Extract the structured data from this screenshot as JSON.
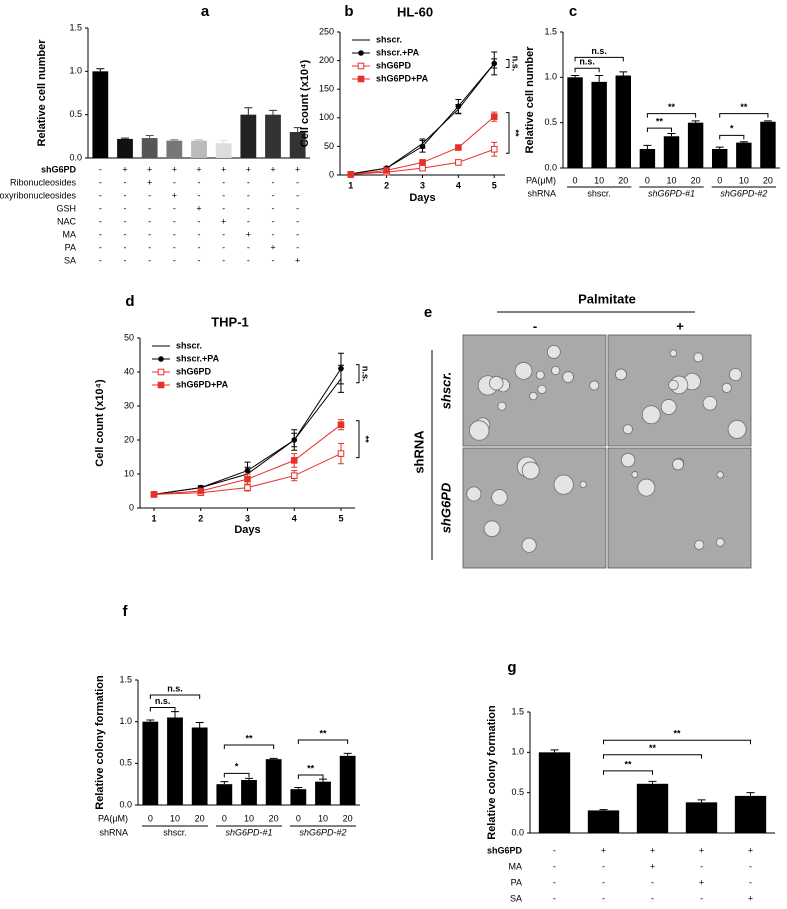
{
  "chart_data": [
    {
      "type": "bar",
      "panel": "a",
      "y_label": "Relative cell number",
      "values": [
        1.0,
        0.22,
        0.23,
        0.2,
        0.2,
        0.17,
        0.5,
        0.5,
        0.3
      ],
      "errors": [
        0.03,
        0.01,
        0.03,
        0.01,
        0.01,
        0.03,
        0.08,
        0.05,
        0.05
      ],
      "colors": [
        "#000000",
        "#111111",
        "#555555",
        "#777777",
        "#bbbbbb",
        "#dddddd",
        "#222222",
        "#333333",
        "#333333"
      ],
      "ylim": [
        0,
        1.5
      ],
      "yticks": [
        {
          "value": 0,
          "label": "0.0"
        },
        {
          "value": 0.5,
          "label": "0.5"
        },
        {
          "value": 1.0,
          "label": "1.0"
        },
        {
          "value": 1.5,
          "label": "1.5"
        }
      ],
      "rows": [
        {
          "label": "shG6PD",
          "cells": [
            "-",
            "+",
            "+",
            "+",
            "+",
            "+",
            "+",
            "+",
            "+"
          ]
        },
        {
          "label": "Ribonucleosides",
          "cells": [
            "-",
            "-",
            "+",
            "-",
            "-",
            "-",
            "-",
            "-",
            "-"
          ]
        },
        {
          "label": "Deoxyribonucleosides",
          "cells": [
            "-",
            "-",
            "-",
            "+",
            "-",
            "-",
            "-",
            "-",
            "-"
          ]
        },
        {
          "label": "GSH",
          "cells": [
            "-",
            "-",
            "-",
            "-",
            "+",
            "-",
            "-",
            "-",
            "-"
          ]
        },
        {
          "label": "NAC",
          "cells": [
            "-",
            "-",
            "-",
            "-",
            "-",
            "+",
            "-",
            "-",
            "-"
          ]
        },
        {
          "label": "MA",
          "cells": [
            "-",
            "-",
            "-",
            "-",
            "-",
            "-",
            "+",
            "-",
            "-"
          ]
        },
        {
          "label": "PA",
          "cells": [
            "-",
            "-",
            "-",
            "-",
            "-",
            "-",
            "-",
            "+",
            "-"
          ]
        },
        {
          "label": "SA",
          "cells": [
            "-",
            "-",
            "-",
            "-",
            "-",
            "-",
            "-",
            "-",
            "+"
          ]
        }
      ]
    },
    {
      "type": "line",
      "panel": "b",
      "title": "HL-60",
      "x_label": "Days",
      "y_label": "Cell count (x10⁴)",
      "x": [
        1,
        2,
        3,
        4,
        5
      ],
      "xlim": [
        0.7,
        5.3
      ],
      "xticks": [
        1,
        2,
        3,
        4,
        5
      ],
      "ylim": [
        0,
        250
      ],
      "yticks": [
        0,
        50,
        100,
        150,
        200,
        250
      ],
      "series": [
        {
          "name": "shscr.",
          "color": "#000000",
          "marker": "none",
          "values": [
            2,
            12,
            55,
            115,
            195
          ],
          "errors": [
            0.5,
            2,
            8,
            8,
            8
          ]
        },
        {
          "name": "shscr.+PA",
          "color": "#000000",
          "marker": "circle",
          "values": [
            2,
            12,
            50,
            120,
            195
          ],
          "errors": [
            1,
            2,
            10,
            12,
            20
          ]
        },
        {
          "name": "shG6PD",
          "color": "#e8302a",
          "marker": "square-open",
          "values": [
            1,
            5,
            12,
            22,
            45
          ],
          "errors": [
            0.5,
            1,
            3,
            3,
            12
          ]
        },
        {
          "name": "shG6PD+PA",
          "color": "#e8302a",
          "marker": "square",
          "values": [
            1,
            8,
            22,
            48,
            102
          ],
          "errors": [
            0.5,
            1,
            3,
            3,
            8
          ]
        }
      ],
      "annotations": [
        "n.s.",
        "**"
      ]
    },
    {
      "type": "bar",
      "panel": "c",
      "y_label": "Relative cell number",
      "values": [
        1.0,
        0.95,
        1.02,
        0.21,
        0.35,
        0.5,
        0.21,
        0.28,
        0.51
      ],
      "errors": [
        0.02,
        0.07,
        0.04,
        0.04,
        0.03,
        0.02,
        0.02,
        0.01,
        0.01
      ],
      "color": "#000000",
      "ylim": [
        0,
        1.5
      ],
      "yticks": [
        {
          "value": 0,
          "label": "0.0"
        },
        {
          "value": 0.5,
          "label": "0.5"
        },
        {
          "value": 1.0,
          "label": "1.0"
        },
        {
          "value": 1.5,
          "label": "1.5"
        }
      ],
      "rows": [
        {
          "label": "PA(μM)",
          "cells": [
            "0",
            "10",
            "20",
            "0",
            "10",
            "20",
            "0",
            "10",
            "20"
          ]
        },
        {
          "label": "shRNA",
          "groups": [
            "shscr.",
            "shG6PD-#1",
            "shG6PD-#2"
          ]
        }
      ],
      "annotations": [
        "n.s.",
        "n.s.",
        "**",
        "**",
        "*",
        "**"
      ]
    },
    {
      "type": "line",
      "panel": "d",
      "title": "THP-1",
      "x_label": "Days",
      "y_label": "Cell count (x10⁴)",
      "x": [
        1,
        2,
        3,
        4,
        5
      ],
      "xlim": [
        0.7,
        5.3
      ],
      "xticks": [
        1,
        2,
        3,
        4,
        5
      ],
      "ylim": [
        0,
        50
      ],
      "yticks": [
        0,
        10,
        20,
        30,
        40,
        50
      ],
      "series": [
        {
          "name": "shscr.",
          "color": "#000000",
          "marker": "none",
          "values": [
            4,
            6,
            10,
            20,
            38
          ],
          "errors": [
            0.3,
            0.5,
            2,
            2,
            4
          ]
        },
        {
          "name": "shscr.+PA",
          "color": "#000000",
          "marker": "circle",
          "values": [
            4,
            6,
            11,
            20,
            41
          ],
          "errors": [
            0.3,
            0.5,
            2.5,
            3,
            4.5
          ]
        },
        {
          "name": "shG6PD",
          "color": "#e8302a",
          "marker": "square-open",
          "values": [
            4,
            4.5,
            6,
            9.5,
            16
          ],
          "errors": [
            0.3,
            0.3,
            1,
            1.5,
            3
          ]
        },
        {
          "name": "shG6PD+PA",
          "color": "#e8302a",
          "marker": "square",
          "values": [
            4,
            5,
            8.5,
            14,
            24.5
          ],
          "errors": [
            0.3,
            0.5,
            1.5,
            2,
            1.5
          ]
        }
      ],
      "annotations": [
        "n.s.",
        "**"
      ]
    },
    {
      "type": "image-grid",
      "panel": "e",
      "title": "Palmitate",
      "columns": [
        "-",
        "+"
      ],
      "rows": [
        "shscr.",
        "shG6PD"
      ],
      "row_axis_label": "shRNA"
    },
    {
      "type": "bar",
      "panel": "f",
      "y_label": "Relative colony formation",
      "values": [
        1.0,
        1.05,
        0.93,
        0.25,
        0.3,
        0.55,
        0.19,
        0.28,
        0.59
      ],
      "errors": [
        0.02,
        0.07,
        0.06,
        0.03,
        0.02,
        0.01,
        0.02,
        0.03,
        0.03
      ],
      "color": "#000000",
      "ylim": [
        0,
        1.5
      ],
      "yticks": [
        {
          "value": 0,
          "label": "0.0"
        },
        {
          "value": 0.5,
          "label": "0.5"
        },
        {
          "value": 1.0,
          "label": "1.0"
        },
        {
          "value": 1.5,
          "label": "1.5"
        }
      ],
      "rows": [
        {
          "label": "PA(μM)",
          "cells": [
            "0",
            "10",
            "20",
            "0",
            "10",
            "20",
            "0",
            "10",
            "20"
          ]
        },
        {
          "label": "shRNA",
          "groups": [
            "shscr.",
            "shG6PD-#1",
            "shG6PD-#2"
          ]
        }
      ],
      "annotations": [
        "n.s.",
        "n.s.",
        "**",
        "*",
        "**",
        "**"
      ]
    },
    {
      "type": "bar",
      "panel": "g",
      "y_label": "Relative colony formation",
      "values": [
        1.0,
        0.28,
        0.61,
        0.38,
        0.46
      ],
      "errors": [
        0.03,
        0.01,
        0.03,
        0.03,
        0.04
      ],
      "color": "#000000",
      "ylim": [
        0,
        1.5
      ],
      "yticks": [
        {
          "value": 0,
          "label": "0.0"
        },
        {
          "value": 0.5,
          "label": "0.5"
        },
        {
          "value": 1.0,
          "label": "1.0"
        },
        {
          "value": 1.5,
          "label": "1.5"
        }
      ],
      "rows": [
        {
          "label": "shG6PD",
          "cells": [
            "-",
            "+",
            "+",
            "+",
            "+"
          ]
        },
        {
          "label": "MA",
          "cells": [
            "-",
            "-",
            "+",
            "-",
            "-"
          ]
        },
        {
          "label": "PA",
          "cells": [
            "-",
            "-",
            "-",
            "+",
            "-"
          ]
        },
        {
          "label": "SA",
          "cells": [
            "-",
            "-",
            "-",
            "-",
            "+"
          ]
        }
      ],
      "annotations": [
        "**",
        "**",
        "**"
      ]
    }
  ]
}
